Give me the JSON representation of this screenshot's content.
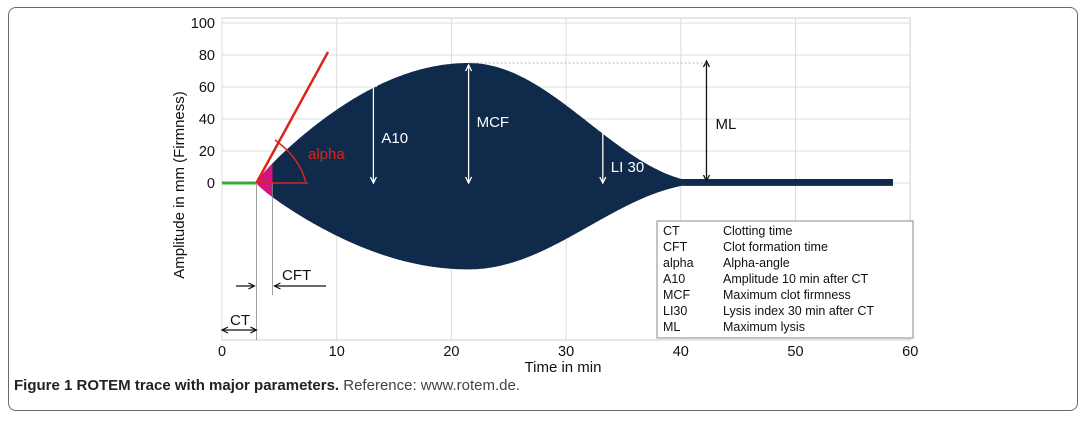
{
  "chart_data": {
    "type": "diagram",
    "xlabel": "Time in min",
    "ylabel": "Amplitude in mm (Firmness)",
    "x_ticks": [
      "0",
      "10",
      "20",
      "30",
      "40",
      "50",
      "60"
    ],
    "y_ticks": [
      "0",
      "20",
      "40",
      "60",
      "80",
      "100"
    ],
    "xlim": [
      0,
      60
    ],
    "ylim": [
      0,
      100
    ],
    "parameters": {
      "ct_min": 3,
      "cft_min": 4.4,
      "a10_time_min": 13.2,
      "a10_amplitude_mm": 65,
      "mcf_time_min": 21.5,
      "mcf_amplitude_mm": 75,
      "li30_time_min": 33.2,
      "li30_amplitude_mm": 47,
      "ml_time_min": 42.5,
      "end_time_min": 58.5
    },
    "annotations": {
      "alpha": "alpha",
      "a10": "A10",
      "mcf": "MCF",
      "li30": "LI 30",
      "ml": "ML",
      "ct": "CT",
      "cft": "CFT"
    },
    "legend": [
      {
        "abbr": "CT",
        "desc": "Clotting time"
      },
      {
        "abbr": "CFT",
        "desc": "Clot formation time"
      },
      {
        "abbr": "alpha",
        "desc": "Alpha-angle"
      },
      {
        "abbr": "A10",
        "desc": "Amplitude 10 min after CT"
      },
      {
        "abbr": "MCF",
        "desc": "Maximum clot firmness"
      },
      {
        "abbr": "LI30",
        "desc": "Lysis index 30 min after CT"
      },
      {
        "abbr": "ML",
        "desc": "Maximum lysis"
      }
    ],
    "colors": {
      "trace": "#0f2a4a",
      "baseline": "#3aaa35",
      "alpha_line": "#d8261c",
      "cft_fill": "#d4147f",
      "grid": "#dcdcdc"
    }
  },
  "caption": {
    "bold": "Figure 1 ROTEM trace with major parameters.",
    "text": " Reference: www.rotem.de."
  }
}
